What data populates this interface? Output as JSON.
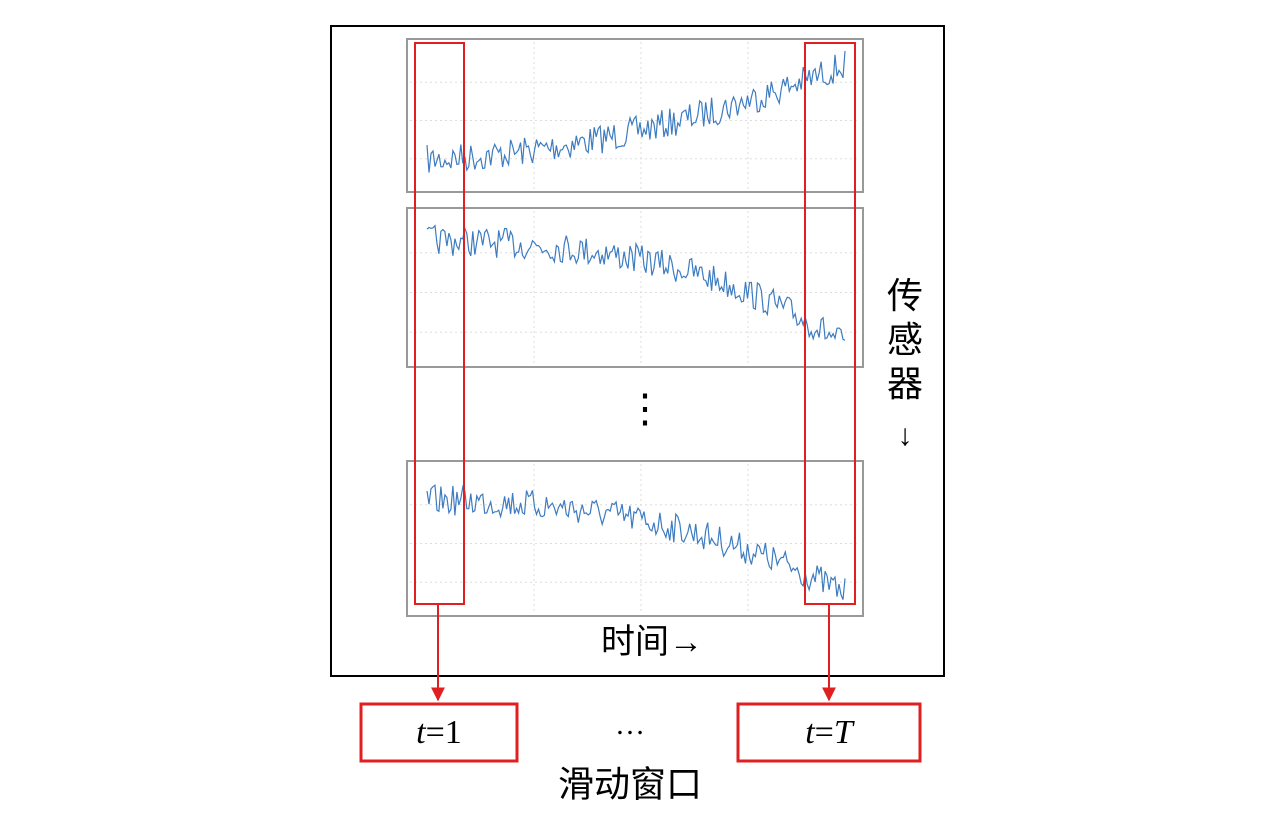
{
  "diagram": {
    "sensor_label": "传感器",
    "sensor_arrow": "↓",
    "time_label": "时间→",
    "vertical_ellipsis": "⋮",
    "horizontal_ellipsis": "…",
    "caption": "滑动窗口",
    "windows": [
      {
        "parts": [
          {
            "text": "t",
            "italic": true
          },
          {
            "text": "=1"
          }
        ]
      },
      {
        "parts": [
          {
            "text": "t",
            "italic": true
          },
          {
            "text": "="
          },
          {
            "text": "T",
            "italic": true
          }
        ]
      }
    ]
  }
}
